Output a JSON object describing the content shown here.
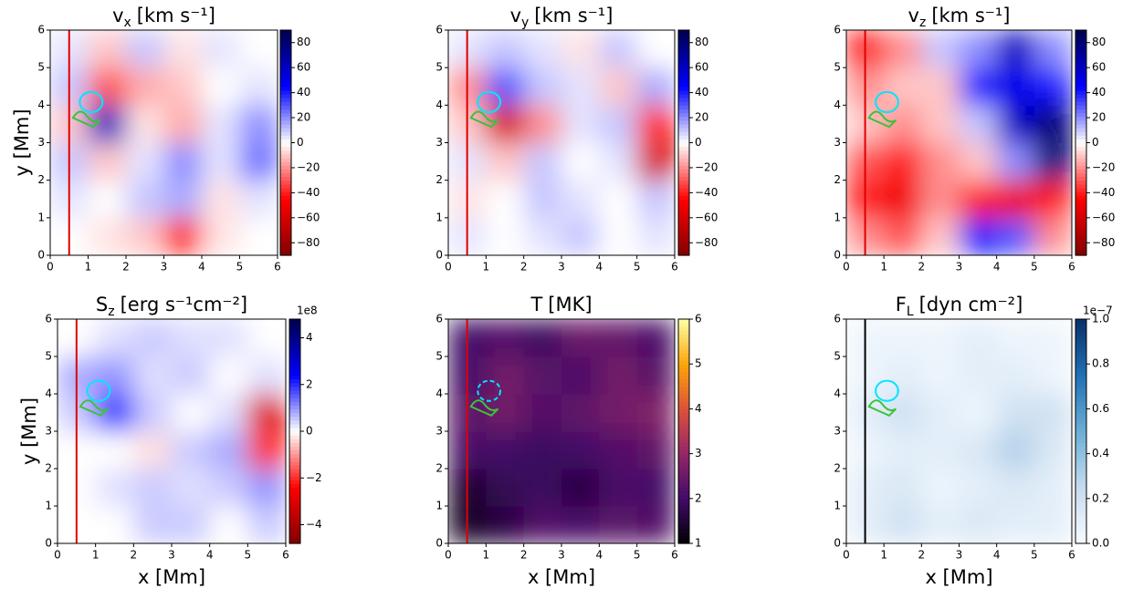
{
  "chart_data": [
    {
      "type": "heatmap",
      "title_base": "v",
      "title_sub": "x",
      "title_unit": "[km s⁻¹]",
      "ylabel": "y [Mm]",
      "cmap": "seismic_r",
      "clim": [
        -90,
        90
      ],
      "cticks": [
        {
          "value": -80,
          "label": "−80"
        },
        {
          "value": -60,
          "label": "−60"
        },
        {
          "value": -40,
          "label": "−40"
        },
        {
          "value": -20,
          "label": "−20"
        },
        0,
        20,
        40,
        60,
        80
      ],
      "xlim": [
        0,
        6
      ],
      "ylim": [
        0,
        6
      ],
      "xticks": [
        0,
        1,
        2,
        3,
        4,
        5,
        6
      ],
      "yticks": [
        0,
        1,
        2,
        3,
        4,
        5,
        6
      ],
      "vline": 0.5,
      "vline_color": "#e00000",
      "x": [
        0.5,
        1.5,
        2.5,
        3.5,
        4.5,
        5.5
      ],
      "y": [
        0.5,
        1.5,
        2.5,
        3.5,
        4.5,
        5.5
      ],
      "z": [
        [
          0,
          -5,
          -10,
          -40,
          -5,
          0
        ],
        [
          5,
          0,
          10,
          15,
          -5,
          5
        ],
        [
          10,
          -10,
          5,
          20,
          5,
          25
        ],
        [
          -10,
          60,
          -5,
          -15,
          5,
          20
        ],
        [
          10,
          -30,
          -15,
          -10,
          0,
          5
        ],
        [
          5,
          -10,
          10,
          -5,
          5,
          0
        ]
      ]
    },
    {
      "type": "heatmap",
      "title_base": "v",
      "title_sub": "y",
      "title_unit": "[km s⁻¹]",
      "cmap": "seismic_r",
      "clim": [
        -90,
        90
      ],
      "cticks": [
        {
          "value": -80,
          "label": "−80"
        },
        {
          "value": -60,
          "label": "−60"
        },
        {
          "value": -40,
          "label": "−40"
        },
        {
          "value": -20,
          "label": "−20"
        },
        0,
        20,
        40,
        60,
        80
      ],
      "xlim": [
        0,
        6
      ],
      "ylim": [
        0,
        6
      ],
      "xticks": [
        0,
        1,
        2,
        3,
        4,
        5,
        6
      ],
      "yticks": [
        0,
        1,
        2,
        3,
        4,
        5,
        6
      ],
      "vline": 0.5,
      "vline_color": "#e00000",
      "x": [
        0.5,
        1.5,
        2.5,
        3.5,
        4.5,
        5.5
      ],
      "y": [
        0.5,
        1.5,
        2.5,
        3.5,
        4.5,
        5.5
      ],
      "z": [
        [
          5,
          0,
          5,
          10,
          0,
          5
        ],
        [
          -5,
          0,
          10,
          5,
          0,
          10
        ],
        [
          5,
          -10,
          10,
          0,
          5,
          -60
        ],
        [
          -10,
          -60,
          -20,
          5,
          10,
          -40
        ],
        [
          -20,
          30,
          10,
          5,
          -10,
          15
        ],
        [
          5,
          10,
          5,
          -5,
          10,
          0
        ]
      ]
    },
    {
      "type": "heatmap",
      "title_base": "v",
      "title_sub": "z",
      "title_unit": "[km s⁻¹]",
      "cmap": "seismic_r",
      "clim": [
        -90,
        90
      ],
      "cticks": [
        {
          "value": -80,
          "label": "−80"
        },
        {
          "value": -60,
          "label": "−60"
        },
        {
          "value": -40,
          "label": "−40"
        },
        {
          "value": -20,
          "label": "−20"
        },
        0,
        20,
        40,
        60,
        80
      ],
      "xlim": [
        0,
        6
      ],
      "ylim": [
        0,
        6
      ],
      "xticks": [
        0,
        1,
        2,
        3,
        4,
        5,
        6
      ],
      "yticks": [
        0,
        1,
        2,
        3,
        4,
        5,
        6
      ],
      "vline": 0.5,
      "vline_color": "#e00000",
      "x": [
        0.5,
        1.5,
        2.5,
        3.5,
        4.5,
        5.5
      ],
      "y": [
        0.5,
        1.5,
        2.5,
        3.5,
        4.5,
        5.5
      ],
      "z": [
        [
          -20,
          -30,
          -10,
          40,
          30,
          -20
        ],
        [
          -40,
          -50,
          -20,
          -40,
          -50,
          -40
        ],
        [
          -30,
          -40,
          -20,
          -10,
          20,
          80
        ],
        [
          -10,
          -20,
          -10,
          10,
          60,
          80
        ],
        [
          -20,
          -10,
          -10,
          40,
          50,
          40
        ],
        [
          -40,
          -20,
          10,
          20,
          60,
          20
        ]
      ]
    },
    {
      "type": "heatmap",
      "title_base": "S",
      "title_sub": "z",
      "title_unit": "[erg s⁻¹cm⁻²]",
      "ylabel": "y [Mm]",
      "xlabel": "x [Mm]",
      "cmap": "seismic_r",
      "clim": [
        -4.8,
        4.8
      ],
      "offset_label": "1e8",
      "cticks": [
        {
          "value": -4,
          "label": "−4"
        },
        {
          "value": -2,
          "label": "−2"
        },
        0,
        2,
        4
      ],
      "xlim": [
        0,
        6
      ],
      "ylim": [
        0,
        6
      ],
      "xticks": [
        0,
        1,
        2,
        3,
        4,
        5,
        6
      ],
      "yticks": [
        0,
        1,
        2,
        3,
        4,
        5,
        6
      ],
      "vline": 0.5,
      "vline_color": "#e00000",
      "x": [
        0.5,
        1.5,
        2.5,
        3.5,
        4.5,
        5.5
      ],
      "y": [
        0.5,
        1.5,
        2.5,
        3.5,
        4.5,
        5.5
      ],
      "z": [
        [
          0,
          0,
          0.5,
          0.5,
          0,
          0.5
        ],
        [
          0,
          0.3,
          0.5,
          0.3,
          0.5,
          1
        ],
        [
          0,
          0,
          -0.3,
          0.5,
          0.8,
          -2
        ],
        [
          0.5,
          2,
          0.5,
          0,
          0.3,
          -3
        ],
        [
          0.8,
          1,
          0.3,
          0.5,
          0,
          0.3
        ],
        [
          0,
          0.3,
          0.5,
          0.3,
          0.3,
          0
        ]
      ]
    },
    {
      "type": "heatmap",
      "title_base": "T",
      "title_unit": "[MK]",
      "xlabel": "x [Mm]",
      "cmap": "inferno",
      "clim": [
        1,
        6
      ],
      "cticks": [
        1,
        2,
        3,
        4,
        5,
        6
      ],
      "xlim": [
        0,
        6
      ],
      "ylim": [
        0,
        6
      ],
      "xticks": [
        0,
        1,
        2,
        3,
        4,
        5,
        6
      ],
      "yticks": [
        0,
        1,
        2,
        3,
        4,
        5,
        6
      ],
      "vline": 0.5,
      "vline_color": "#e00000",
      "x": [
        0.5,
        1.5,
        2.5,
        3.5,
        4.5,
        5.5
      ],
      "y": [
        0.5,
        1.5,
        2.5,
        3.5,
        4.5,
        5.5
      ],
      "z": [
        [
          1.3,
          1.6,
          2.2,
          2.1,
          2.3,
          2.2
        ],
        [
          1.4,
          1.8,
          1.9,
          1.6,
          2.1,
          2.0
        ],
        [
          2.1,
          2.0,
          1.9,
          2.0,
          2.2,
          2.4
        ],
        [
          2.3,
          2.6,
          2.2,
          2.4,
          2.6,
          2.8
        ],
        [
          2.0,
          2.6,
          2.3,
          2.1,
          2.6,
          2.3
        ],
        [
          2.0,
          2.2,
          1.9,
          2.5,
          2.4,
          2.1
        ]
      ]
    },
    {
      "type": "heatmap",
      "title_base": "F",
      "title_sub": "L",
      "title_unit": "[dyn cm⁻²]",
      "xlabel": "x [Mm]",
      "cmap": "Blues",
      "clim": [
        0,
        1
      ],
      "offset_label": "1e−7",
      "cticks": [
        {
          "value": 0,
          "label": "0.0"
        },
        0.2,
        0.4,
        0.6,
        0.8,
        {
          "value": 1,
          "label": "1.0"
        }
      ],
      "xlim": [
        0,
        6
      ],
      "ylim": [
        0,
        6
      ],
      "xticks": [
        0,
        1,
        2,
        3,
        4,
        5,
        6
      ],
      "yticks": [
        0,
        1,
        2,
        3,
        4,
        5,
        6
      ],
      "vline": 0.5,
      "vline_color": "#000000",
      "x": [
        0.5,
        1.5,
        2.5,
        3.5,
        4.5,
        5.5
      ],
      "y": [
        0.5,
        1.5,
        2.5,
        3.5,
        4.5,
        5.5
      ],
      "z": [
        [
          0.1,
          0.2,
          0.1,
          0.15,
          0.1,
          0.1
        ],
        [
          0.1,
          0.15,
          0.05,
          0.1,
          0.15,
          0.1
        ],
        [
          0.05,
          0.1,
          0.1,
          0.15,
          0.3,
          0.15
        ],
        [
          0.1,
          0.2,
          0.1,
          0.05,
          0.2,
          0.2
        ],
        [
          0.05,
          0.1,
          0.05,
          0.1,
          0.1,
          0.05
        ],
        [
          0.05,
          0.05,
          0.05,
          0.1,
          0.05,
          0.05
        ]
      ]
    }
  ]
}
